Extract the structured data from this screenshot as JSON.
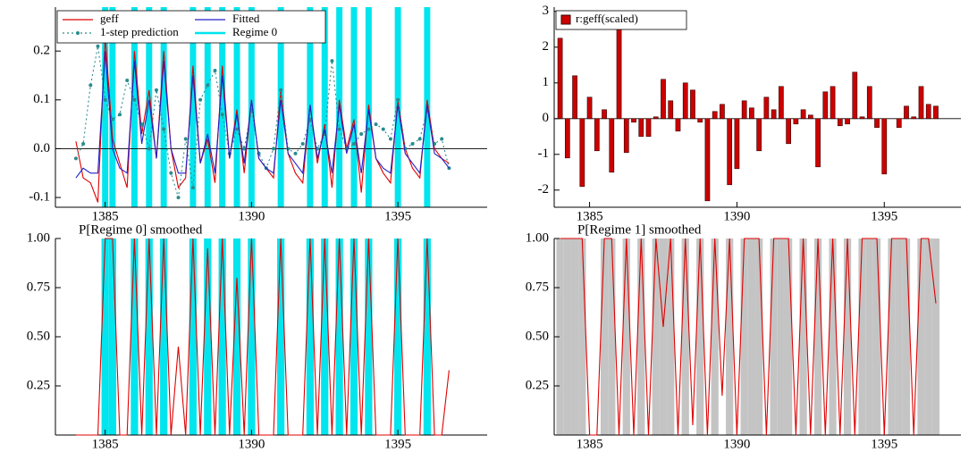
{
  "chart_data": [
    {
      "type": "line",
      "x": [
        1384,
        1384.25,
        1384.5,
        1384.75,
        1385,
        1385.25,
        1385.5,
        1385.75,
        1386,
        1386.25,
        1386.5,
        1386.75,
        1387,
        1387.25,
        1387.5,
        1387.75,
        1388,
        1388.25,
        1388.5,
        1388.75,
        1389,
        1389.25,
        1389.5,
        1389.75,
        1390,
        1390.25,
        1390.5,
        1390.75,
        1391,
        1391.25,
        1391.5,
        1391.75,
        1392,
        1392.25,
        1392.5,
        1392.75,
        1393,
        1393.25,
        1393.5,
        1393.75,
        1394,
        1394.25,
        1394.5,
        1394.75,
        1395,
        1395.25,
        1395.5,
        1395.75,
        1396,
        1396.25,
        1396.5,
        1396.75
      ],
      "series": [
        {
          "name": "geff",
          "color": "#e00000",
          "style": "solid",
          "markers": false,
          "values": [
            0.015,
            -0.06,
            -0.07,
            -0.11,
            0.23,
            0.02,
            -0.03,
            -0.08,
            0.2,
            0.03,
            0.12,
            -0.02,
            0.2,
            0.0,
            -0.08,
            -0.06,
            0.17,
            -0.03,
            0.02,
            -0.07,
            0.17,
            -0.02,
            0.08,
            -0.05,
            0.1,
            -0.02,
            -0.04,
            -0.06,
            0.12,
            -0.01,
            -0.05,
            -0.07,
            0.09,
            -0.03,
            0.05,
            -0.08,
            0.1,
            0.0,
            0.06,
            -0.09,
            0.09,
            -0.02,
            -0.05,
            -0.07,
            0.1,
            0.0,
            -0.04,
            -0.06,
            0.1,
            0.0,
            -0.02,
            -0.03
          ]
        },
        {
          "name": "1-step prediction",
          "color": "#2a8c8c",
          "style": "dotted",
          "markers": true,
          "values": [
            -0.02,
            0.01,
            0.13,
            0.21,
            0.1,
            0.06,
            0.07,
            0.14,
            0.1,
            0.05,
            0.0,
            0.12,
            0.04,
            -0.05,
            -0.1,
            0.02,
            -0.08,
            0.1,
            0.13,
            0.16,
            0.07,
            -0.01,
            0.04,
            0.0,
            0.08,
            -0.01,
            -0.04,
            0.0,
            0.12,
            0.0,
            -0.01,
            0.01,
            0.06,
            0.0,
            0.03,
            0.18,
            0.04,
            0.0,
            0.01,
            0.03,
            0.04,
            0.05,
            0.04,
            0.02,
            0.1,
            0.0,
            0.01,
            0.02,
            0.08,
            0.01,
            0.02,
            -0.04
          ]
        },
        {
          "name": "Fitted",
          "color": "#2020c8",
          "style": "solid",
          "markers": false,
          "values": [
            -0.06,
            -0.04,
            -0.05,
            -0.05,
            0.2,
            0.0,
            -0.04,
            -0.05,
            0.18,
            0.01,
            0.1,
            -0.02,
            0.18,
            0.0,
            -0.05,
            -0.05,
            0.15,
            -0.03,
            0.03,
            -0.05,
            0.15,
            -0.02,
            0.07,
            -0.03,
            0.1,
            -0.02,
            -0.04,
            -0.05,
            0.1,
            -0.01,
            -0.03,
            -0.05,
            0.09,
            -0.02,
            0.04,
            -0.05,
            0.09,
            -0.01,
            0.05,
            -0.05,
            0.08,
            -0.02,
            -0.04,
            -0.05,
            0.09,
            -0.01,
            -0.03,
            -0.05,
            0.09,
            -0.01,
            -0.02,
            -0.04
          ]
        }
      ],
      "bands": {
        "name": "Regime 0",
        "color": "#00e5ee",
        "x": [
          1385,
          1385.25,
          1386,
          1386.5,
          1387,
          1388,
          1388.5,
          1389,
          1389.5,
          1390,
          1391,
          1392,
          1392.5,
          1393,
          1393.5,
          1394,
          1395,
          1396
        ]
      },
      "xlim": [
        1383.3,
        1398.05
      ],
      "xticks": [
        1385,
        1390,
        1395
      ],
      "ylim": [
        -0.12,
        0.29
      ],
      "yticks": [
        -0.1,
        {
          "value": 0,
          "label": "0.0"
        },
        0.1,
        0.2
      ],
      "zero_line": true,
      "legend": "upper left"
    },
    {
      "type": "bar",
      "x": [
        1384,
        1384.25,
        1384.5,
        1384.75,
        1385,
        1385.25,
        1385.5,
        1385.75,
        1386,
        1386.25,
        1386.5,
        1386.75,
        1387,
        1387.25,
        1387.5,
        1387.75,
        1388,
        1388.25,
        1388.5,
        1388.75,
        1389,
        1389.25,
        1389.5,
        1389.75,
        1390,
        1390.25,
        1390.5,
        1390.75,
        1391,
        1391.25,
        1391.5,
        1391.75,
        1392,
        1392.25,
        1392.5,
        1392.75,
        1393,
        1393.25,
        1393.5,
        1393.75,
        1394,
        1394.25,
        1394.5,
        1394.75,
        1395,
        1395.25,
        1395.5,
        1395.75,
        1396,
        1396.25,
        1396.5,
        1396.75
      ],
      "series": [
        {
          "name": "r:geff(scaled)",
          "color": "#cc0000",
          "values": [
            2.25,
            -1.1,
            1.2,
            -1.9,
            0.6,
            -0.9,
            0.25,
            -1.5,
            2.65,
            -0.95,
            -0.1,
            -0.5,
            -0.5,
            0.05,
            1.1,
            0.5,
            -0.35,
            1.0,
            0.8,
            -0.1,
            -2.3,
            0.2,
            0.4,
            -1.85,
            -1.4,
            0.5,
            0.3,
            -0.9,
            0.6,
            0.25,
            0.9,
            -0.7,
            -0.15,
            0.25,
            0.1,
            -1.35,
            0.75,
            0.9,
            -0.2,
            -0.15,
            1.3,
            0.05,
            0.9,
            -0.25,
            -1.55,
            0.0,
            -0.25,
            0.35,
            0.05,
            0.9,
            0.4,
            0.35
          ]
        }
      ],
      "xlim": [
        1383.8,
        1397.6
      ],
      "xticks": [
        1385,
        1390,
        1395
      ],
      "ylim": [
        -2.48,
        3.12
      ],
      "yticks": [
        -2,
        -1,
        0,
        1,
        2,
        3
      ],
      "zero_line": true,
      "legend": "upper left"
    },
    {
      "type": "line",
      "title": "P[Regime 0] smoothed",
      "x": [
        1384,
        1384.25,
        1384.5,
        1384.75,
        1385,
        1385.25,
        1385.5,
        1385.75,
        1386,
        1386.25,
        1386.5,
        1386.75,
        1387,
        1387.25,
        1387.5,
        1387.75,
        1388,
        1388.25,
        1388.5,
        1388.75,
        1389,
        1389.25,
        1389.5,
        1389.75,
        1390,
        1390.25,
        1390.5,
        1390.75,
        1391,
        1391.25,
        1391.5,
        1391.75,
        1392,
        1392.25,
        1392.5,
        1392.75,
        1393,
        1393.25,
        1393.5,
        1393.75,
        1394,
        1394.25,
        1394.5,
        1394.75,
        1395,
        1395.25,
        1395.5,
        1395.75,
        1396,
        1396.25,
        1396.5,
        1396.75
      ],
      "series": [
        {
          "color": "#e00000",
          "style": "solid",
          "markers": false,
          "values": [
            0,
            0,
            0,
            0,
            1,
            1,
            0,
            0,
            1,
            0,
            1,
            0,
            1,
            0,
            0.45,
            0,
            1,
            0,
            0.95,
            0,
            1,
            0,
            0.8,
            0,
            1,
            0,
            0,
            0,
            1,
            0,
            0,
            0,
            1,
            0,
            1,
            0,
            1,
            0,
            1,
            0,
            1,
            0,
            0,
            0,
            1,
            0,
            0,
            0,
            1,
            0,
            0,
            0.33
          ]
        }
      ],
      "bands": {
        "color": "#00e5ee",
        "x": [
          1385,
          1385.25,
          1386,
          1386.5,
          1387,
          1388,
          1388.5,
          1389,
          1389.5,
          1390,
          1391,
          1392,
          1392.5,
          1393,
          1393.5,
          1394,
          1395,
          1396
        ]
      },
      "xlim": [
        1383.3,
        1398.05
      ],
      "xticks": [
        1385,
        1390,
        1395
      ],
      "ylim": [
        0,
        1
      ],
      "yticks": [
        0.25,
        {
          "value": 0.5,
          "label": "0.50"
        },
        0.75,
        {
          "value": 1,
          "label": "1.00"
        }
      ]
    },
    {
      "type": "line",
      "title": "P[Regime 1] smoothed",
      "x": [
        1384,
        1384.25,
        1384.5,
        1384.75,
        1385,
        1385.25,
        1385.5,
        1385.75,
        1386,
        1386.25,
        1386.5,
        1386.75,
        1387,
        1387.25,
        1387.5,
        1387.75,
        1388,
        1388.25,
        1388.5,
        1388.75,
        1389,
        1389.25,
        1389.5,
        1389.75,
        1390,
        1390.25,
        1390.5,
        1390.75,
        1391,
        1391.25,
        1391.5,
        1391.75,
        1392,
        1392.25,
        1392.5,
        1392.75,
        1393,
        1393.25,
        1393.5,
        1393.75,
        1394,
        1394.25,
        1394.5,
        1394.75,
        1395,
        1395.25,
        1395.5,
        1395.75,
        1396,
        1396.25,
        1396.5,
        1396.75
      ],
      "series": [
        {
          "color": "#e00000",
          "style": "solid",
          "markers": false,
          "values": [
            1,
            1,
            1,
            1,
            0,
            0,
            1,
            1,
            0,
            1,
            0,
            1,
            0,
            1,
            0.55,
            1,
            0,
            1,
            0.05,
            1,
            0,
            1,
            0.2,
            1,
            0,
            1,
            1,
            1,
            0,
            1,
            1,
            1,
            0,
            1,
            0,
            1,
            0,
            1,
            0,
            1,
            0,
            1,
            1,
            1,
            0,
            1,
            1,
            1,
            0,
            1,
            1,
            0.67
          ]
        }
      ],
      "bands": {
        "color": "#c4c4c4",
        "x": [
          1384,
          1384.25,
          1384.5,
          1384.75,
          1385.5,
          1385.75,
          1386.25,
          1386.75,
          1387.25,
          1387.5,
          1387.75,
          1388.25,
          1388.75,
          1389.25,
          1389.75,
          1390.25,
          1390.5,
          1390.75,
          1391.25,
          1391.5,
          1391.75,
          1392.25,
          1392.75,
          1393.25,
          1393.75,
          1394.25,
          1394.5,
          1394.75,
          1395.25,
          1395.5,
          1395.75,
          1396.25,
          1396.5,
          1396.75
        ]
      },
      "xlim": [
        1383.8,
        1397.6
      ],
      "xticks": [
        1385,
        1390,
        1395
      ],
      "ylim": [
        0,
        1
      ],
      "yticks": [
        0.25,
        {
          "value": 0.5,
          "label": "0.50"
        },
        0.75,
        {
          "value": 1,
          "label": "1.00"
        }
      ]
    }
  ]
}
